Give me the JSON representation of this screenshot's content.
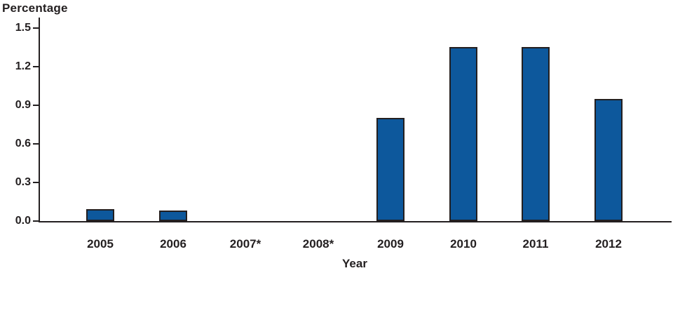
{
  "chart_data": {
    "type": "bar",
    "title": "",
    "ylabel": "Percentage",
    "xlabel": "Year",
    "categories": [
      "2005",
      "2006",
      "2007*",
      "2008*",
      "2009",
      "2010",
      "2011",
      "2012"
    ],
    "values": [
      0.09,
      0.08,
      null,
      null,
      0.8,
      1.35,
      1.35,
      0.95
    ],
    "ylim": [
      0,
      1.5
    ],
    "y_ticks": [
      "0.0",
      "0.3",
      "0.6",
      "0.9",
      "1.2",
      "1.5"
    ],
    "grid": "off",
    "legend": "none",
    "bar_color": "#0d589c",
    "bar_border_color": "#231f20",
    "axis_color": "#231f20"
  }
}
